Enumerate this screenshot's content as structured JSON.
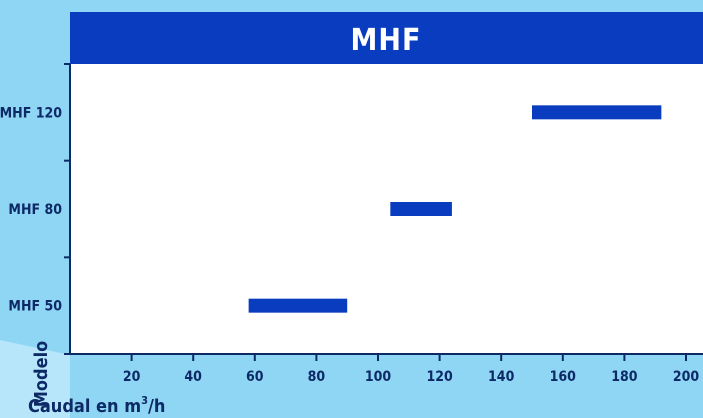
{
  "chart_data": {
    "type": "bar",
    "orientation": "horizontal-range",
    "title": "MHF",
    "xlabel": "Caudal en m³/h",
    "xlabel_parts": {
      "before": "Caudal en m",
      "sup": "3",
      "after": "/h"
    },
    "ylabel": "Modelo",
    "xlim": [
      0,
      200
    ],
    "x_ticks": [
      20,
      40,
      60,
      80,
      100,
      120,
      140,
      160,
      180,
      200
    ],
    "categories": [
      "MHF 50",
      "MHF 80",
      "MHF 120"
    ],
    "ranges": [
      {
        "category": "MHF 50",
        "start": 58,
        "end": 90
      },
      {
        "category": "MHF 80",
        "start": 104,
        "end": 124
      },
      {
        "category": "MHF 120",
        "start": 150,
        "end": 192
      }
    ],
    "grid": false,
    "colors": {
      "background": "#8fd6f5",
      "plot_background": "#ffffff",
      "title_band": "#0a3cbf",
      "bars": "#0a3cbf",
      "axis": "#0d2a66"
    }
  }
}
